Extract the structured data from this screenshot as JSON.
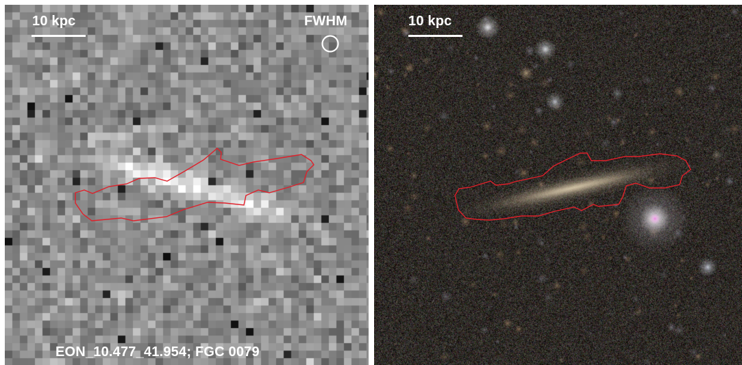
{
  "left_panel": {
    "scale_label": "10 kpc",
    "fwhm_label": "FWHM",
    "caption": "EON_10.477_41.954; FGC 0079"
  },
  "right_panel": {
    "scale_label": "10 kpc"
  },
  "colors": {
    "contour": "#e0202a",
    "text": "#ffffff"
  },
  "icons": {
    "beam": "fwhm-circle-icon"
  }
}
